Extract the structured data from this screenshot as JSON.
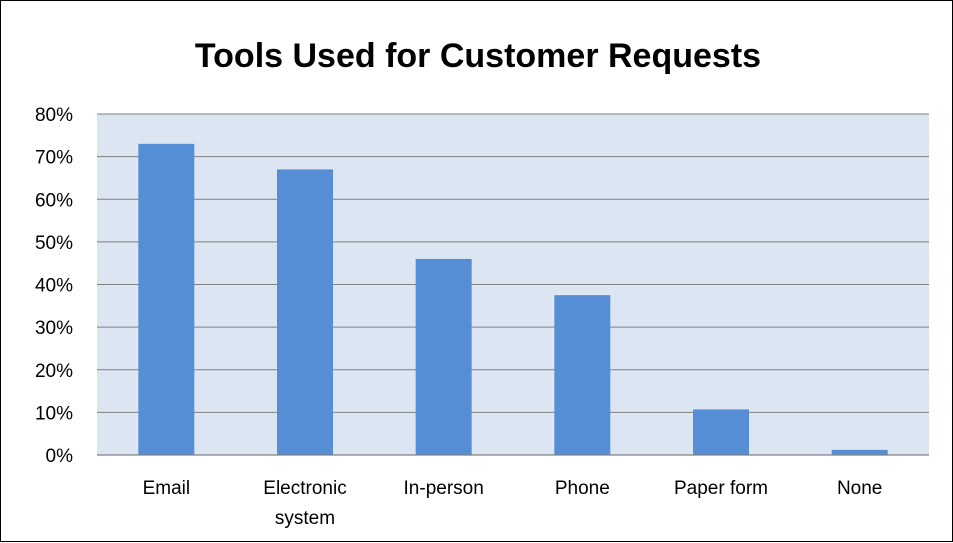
{
  "chart_data": {
    "type": "bar",
    "title": "Tools Used for Customer Requests",
    "xlabel": "",
    "ylabel": "",
    "categories": [
      "Email",
      "Electronic system",
      "In-person",
      "Phone",
      "Paper form",
      "None"
    ],
    "category_label_lines": [
      [
        "Email"
      ],
      [
        "Electronic",
        "system"
      ],
      [
        "In-person"
      ],
      [
        "Phone"
      ],
      [
        "Paper form"
      ],
      [
        "None"
      ]
    ],
    "values": [
      73,
      67,
      46,
      37.5,
      10.7,
      1.2
    ],
    "ylim": [
      0,
      80
    ],
    "yticks": [
      0,
      10,
      20,
      30,
      40,
      50,
      60,
      70,
      80
    ],
    "ytick_labels": [
      "0%",
      "10%",
      "20%",
      "30%",
      "40%",
      "50%",
      "60%",
      "70%",
      "80%"
    ],
    "grid": true,
    "legend": "none",
    "colors": {
      "bar": "#558ed5",
      "plot_area": "#dce6f2",
      "gridline": "#808080"
    }
  }
}
